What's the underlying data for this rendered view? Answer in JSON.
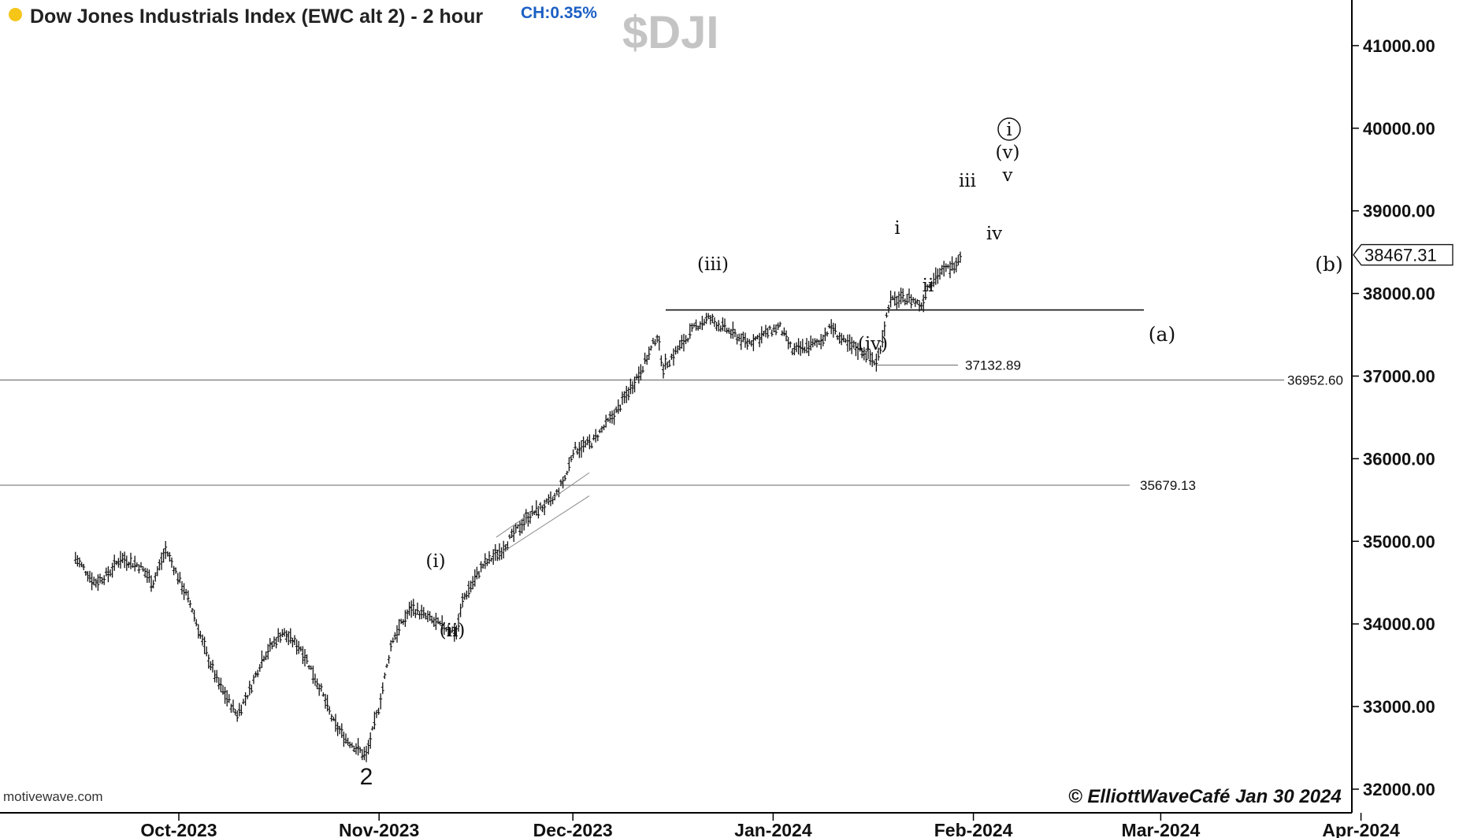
{
  "header": {
    "title": "Dow Jones Industrials Index (EWC alt 2) - 2 hour",
    "change_label": "CH:0.35%",
    "symbol_watermark": "$DJI"
  },
  "footer": {
    "source": "motivewave.com",
    "copyright": "© ElliottWaveCafé Jan 30 2024"
  },
  "colors": {
    "title_dot": "#f5c518",
    "change_text": "#1c5fc4",
    "watermark": "#c4c4c4",
    "bars": "#111111",
    "gridline": "#999999",
    "axis": "#000000"
  },
  "chart_data": {
    "type": "ohlc-bar",
    "title": "Dow Jones Industrials Index (EWC alt 2) - 2 hour",
    "xlabel": "",
    "ylabel": "",
    "ylim": [
      31900,
      41200
    ],
    "grid": false,
    "x_ticks": [
      "Oct-2023",
      "Nov-2023",
      "Dec-2023",
      "Jan-2024",
      "Feb-2024",
      "Mar-2024",
      "Apr-2024"
    ],
    "y_ticks": [
      "32000.00",
      "33000.00",
      "34000.00",
      "35000.00",
      "36000.00",
      "37000.00",
      "38000.00",
      "39000.00",
      "40000.00",
      "41000.00"
    ],
    "last_price": "38467.31",
    "series": [
      {
        "x": [
          "2023-09-15",
          "2023-09-18",
          "2023-09-20",
          "2023-09-22",
          "2023-09-25",
          "2023-09-27",
          "2023-09-29",
          "2023-10-03",
          "2023-10-05",
          "2023-10-07",
          "2023-10-10",
          "2023-10-12",
          "2023-10-14",
          "2023-10-17",
          "2023-10-20",
          "2023-10-23",
          "2023-10-25",
          "2023-10-27",
          "2023-10-30",
          "2023-11-01",
          "2023-11-03",
          "2023-11-06",
          "2023-11-08",
          "2023-11-10",
          "2023-11-13",
          "2023-11-14",
          "2023-11-17",
          "2023-11-20",
          "2023-11-22",
          "2023-11-24",
          "2023-11-28",
          "2023-11-30",
          "2023-12-01",
          "2023-12-04",
          "2023-12-06",
          "2023-12-08",
          "2023-12-11",
          "2023-12-13",
          "2023-12-14",
          "2023-12-15",
          "2023-12-18",
          "2023-12-20",
          "2023-12-22",
          "2023-12-26",
          "2023-12-28",
          "2024-01-02",
          "2024-01-04",
          "2024-01-08",
          "2024-01-10",
          "2024-01-12",
          "2024-01-15",
          "2024-01-17",
          "2024-01-18",
          "2024-01-19",
          "2024-01-22",
          "2024-01-24",
          "2024-01-25",
          "2024-01-26",
          "2024-01-29",
          "2024-01-30"
        ],
        "y": [
          34800,
          34500,
          34600,
          34800,
          34700,
          34500,
          34900,
          34200,
          33700,
          33300,
          32900,
          33200,
          33600,
          33900,
          33700,
          33200,
          32800,
          32600,
          32400,
          33000,
          33800,
          34200,
          34100,
          34000,
          33900,
          34300,
          34700,
          34900,
          35100,
          35300,
          35500,
          35800,
          36100,
          36200,
          36400,
          36600,
          37000,
          37300,
          37500,
          37100,
          37400,
          37600,
          37700,
          37500,
          37400,
          37600,
          37300,
          37400,
          37600,
          37400,
          37300,
          37150,
          37500,
          37900,
          37950,
          37850,
          38100,
          38200,
          38350,
          38467.31
        ]
      }
    ],
    "horizontal_levels": [
      {
        "value": 36952.6,
        "label": "36952.60"
      },
      {
        "value": 35679.13,
        "label": "35679.13"
      },
      {
        "value": 37132.89,
        "label": "37132.89"
      }
    ],
    "wave_labels": [
      "2",
      "(i)",
      "(ii)",
      "(iii)",
      "(iv)",
      "i",
      "ii",
      "iii",
      "iv",
      "v",
      "(v)",
      "i",
      "(a)",
      "(b)"
    ]
  }
}
